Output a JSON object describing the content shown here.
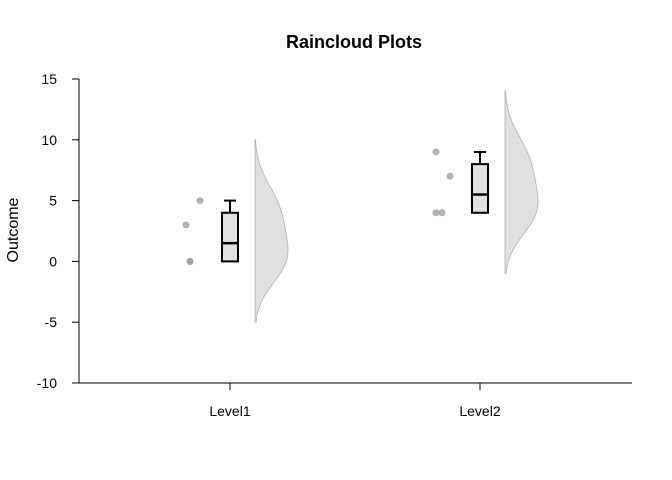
{
  "chart_data": {
    "type": "raincloud",
    "title": "Raincloud Plots",
    "xlabel": "",
    "ylabel": "Outcome",
    "ylim": [
      -10,
      15
    ],
    "yticks": [
      -10,
      -5,
      0,
      5,
      10,
      15
    ],
    "categories": [
      "Level1",
      "Level2"
    ],
    "groups": [
      {
        "name": "Level1",
        "points": [
          0,
          0,
          3,
          5
        ],
        "box": {
          "min": 0,
          "q1": 0,
          "median": 1.5,
          "q3": 4,
          "max": 5
        },
        "density_range": [
          -5,
          10
        ]
      },
      {
        "name": "Level2",
        "points": [
          4,
          4,
          7,
          9
        ],
        "box": {
          "min": 4,
          "q1": 4,
          "median": 5.5,
          "q3": 8,
          "max": 9
        },
        "density_range": [
          -1,
          14
        ]
      }
    ],
    "grid": false,
    "legend": "none",
    "colors": {
      "cloud_fill": "#e0e0e0",
      "cloud_stroke": "#b0b0b0",
      "box_fill": "#e0e0e0",
      "box_stroke": "#000000",
      "point": "#9a9a9a"
    }
  }
}
